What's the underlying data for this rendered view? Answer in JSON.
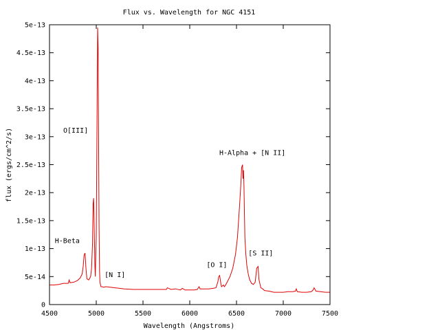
{
  "chart_data": {
    "type": "line",
    "title": "Flux vs. Wavelength for NGC 4151",
    "xlabel": "Wavelength (Angstroms)",
    "ylabel": "flux (ergs/cm^2/s)",
    "xlim": [
      4500,
      7500
    ],
    "ylim": [
      0,
      5e-13
    ],
    "x_ticks": [
      4500,
      5000,
      5500,
      6000,
      6500,
      7000,
      7500
    ],
    "x_tick_labels": [
      "4500",
      "5000",
      "5500",
      "6000",
      "6500",
      "7000",
      "7500"
    ],
    "y_ticks": [
      0,
      5e-14,
      1e-13,
      1.5e-13,
      2e-13,
      2.5e-13,
      3e-13,
      3.5e-13,
      4e-13,
      4.5e-13,
      5e-13
    ],
    "y_tick_labels": [
      "0",
      "5e-14",
      "1e-13",
      "1.5e-13",
      "2e-13",
      "2.5e-13",
      "3e-13",
      "3.5e-13",
      "4e-13",
      "4.5e-13",
      "5e-13"
    ],
    "grid": false,
    "line_color": "#e00000",
    "series": [
      {
        "x": [
          4500,
          4550,
          4600,
          4650,
          4680,
          4700,
          4710,
          4720,
          4760,
          4800,
          4830,
          4850,
          4860,
          4870,
          4880,
          4890,
          4900,
          4920,
          4940,
          4950,
          4960,
          4966,
          4972,
          4980,
          4985,
          4990,
          5000,
          5005,
          5010,
          5015,
          5020,
          5025,
          5030,
          5035,
          5040,
          5050,
          5060,
          5080,
          5100,
          5150,
          5200,
          5250,
          5300,
          5400,
          5500,
          5600,
          5700,
          5750,
          5760,
          5800,
          5850,
          5900,
          5920,
          5950,
          6000,
          6050,
          6080,
          6100,
          6110,
          6150,
          6200,
          6250,
          6280,
          6300,
          6310,
          6320,
          6330,
          6340,
          6360,
          6370,
          6380,
          6400,
          6430,
          6460,
          6490,
          6510,
          6530,
          6545,
          6555,
          6565,
          6570,
          6575,
          6580,
          6585,
          6590,
          6600,
          6610,
          6625,
          6640,
          6660,
          6680,
          6700,
          6716,
          6731,
          6740,
          6760,
          6780,
          6800,
          6850,
          6900,
          6950,
          7000,
          7050,
          7100,
          7130,
          7140,
          7150,
          7200,
          7250,
          7300,
          7320,
          7330,
          7350,
          7400,
          7450,
          7500
        ],
        "y": [
          3.5e-14,
          3.5e-14,
          3.6e-14,
          3.8e-14,
          3.8e-14,
          3.8e-14,
          4.4e-14,
          3.9e-14,
          4e-14,
          4.3e-14,
          4.8e-14,
          5.5e-14,
          6.8e-14,
          8.8e-14,
          9.2e-14,
          6.5e-14,
          4.6e-14,
          4.4e-14,
          5e-14,
          6.5e-14,
          1.1e-13,
          1.8e-13,
          1.9e-13,
          1.2e-13,
          7e-14,
          5e-14,
          1.2e-13,
          2.5e-13,
          3.8e-13,
          4.95e-13,
          4.6e-13,
          3e-13,
          1.4e-13,
          6e-14,
          4e-14,
          3.2e-14,
          3.2e-14,
          3.1e-14,
          3.2e-14,
          3.1e-14,
          3e-14,
          2.9e-14,
          2.8e-14,
          2.7e-14,
          2.7e-14,
          2.7e-14,
          2.7e-14,
          2.7e-14,
          3e-14,
          2.7e-14,
          2.8e-14,
          2.6e-14,
          2.9e-14,
          2.6e-14,
          2.6e-14,
          2.6e-14,
          2.7e-14,
          3.2e-14,
          2.8e-14,
          2.8e-14,
          2.8e-14,
          2.9e-14,
          3e-14,
          4e-14,
          5e-14,
          5.2e-14,
          4e-14,
          3.2e-14,
          3.5e-14,
          3.2e-14,
          3.4e-14,
          4e-14,
          5e-14,
          6.5e-14,
          9e-14,
          1.2e-13,
          1.7e-13,
          2.1e-13,
          2.45e-13,
          2.5e-13,
          2.25e-13,
          2.4e-13,
          2.1e-13,
          1.6e-13,
          1.2e-13,
          9e-14,
          7e-14,
          5.5e-14,
          4.5e-14,
          3.8e-14,
          3.6e-14,
          4e-14,
          6.5e-14,
          6.8e-14,
          4.5e-14,
          3e-14,
          2.8e-14,
          2.5e-14,
          2.4e-14,
          2.2e-14,
          2.2e-14,
          2.2e-14,
          2.3e-14,
          2.3e-14,
          2.4e-14,
          2.8e-14,
          2.3e-14,
          2.2e-14,
          2.2e-14,
          2.3e-14,
          2.6e-14,
          3e-14,
          2.4e-14,
          2.3e-14,
          2.2e-14,
          2.2e-14
        ]
      }
    ],
    "annotations": [
      {
        "text": "O[III]",
        "x": 4780,
        "y": 3.07e-13
      },
      {
        "text": "H-Beta",
        "x": 4690,
        "y": 1.1e-13
      },
      {
        "text": "[N I]",
        "x": 5200,
        "y": 4.9e-14
      },
      {
        "text": "[O I]",
        "x": 6290,
        "y": 6.7e-14
      },
      {
        "text": "H-Alpha + [N II]",
        "x": 6670,
        "y": 2.67e-13
      },
      {
        "text": "[S II]",
        "x": 6760,
        "y": 8.8e-14
      }
    ]
  }
}
